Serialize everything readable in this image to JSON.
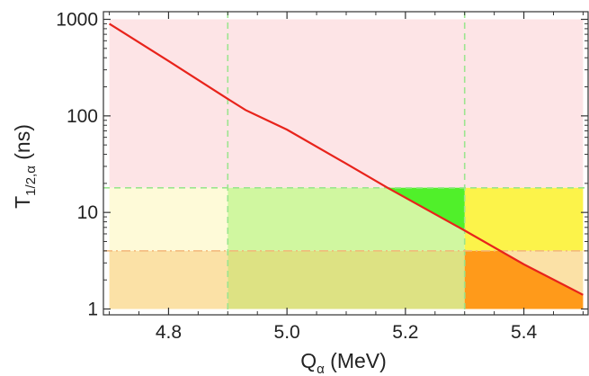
{
  "chart_data": {
    "type": "line",
    "title": "",
    "xlabel": {
      "main": "Q",
      "sub": "α",
      "suffix": " (MeV)"
    },
    "ylabel": {
      "main": "T",
      "sub": "1/2,α",
      "suffix": " (ns)"
    },
    "xlim": [
      4.69,
      5.51
    ],
    "ylim": [
      0.87,
      1200
    ],
    "yscale": "log",
    "x_ticks": [
      {
        "value": 4.8,
        "label": "4.8"
      },
      {
        "value": 5.0,
        "label": "5.0"
      },
      {
        "value": 5.2,
        "label": "5.2"
      },
      {
        "value": 5.4,
        "label": "5.4"
      }
    ],
    "y_ticks": [
      {
        "value": 1,
        "label": "1"
      },
      {
        "value": 10,
        "label": "10"
      },
      {
        "value": 100,
        "label": "100"
      },
      {
        "value": 1000,
        "label": "1000"
      }
    ],
    "grid": false,
    "series": [
      {
        "color": "#e8231b",
        "x": [
          4.7,
          4.8,
          4.9,
          4.93,
          5.0,
          5.1,
          5.17,
          5.3,
          5.4,
          5.5
        ],
        "y": [
          900,
          370,
          150,
          115,
          72,
          32,
          18,
          6.5,
          2.9,
          1.4
        ]
      }
    ],
    "regions": [
      {
        "x": [
          4.7,
          5.5
        ],
        "y": [
          18,
          1000
        ],
        "color": "#fde4e6"
      },
      {
        "x": [
          4.7,
          4.9
        ],
        "y": [
          4,
          18
        ],
        "color": "#fefad8"
      },
      {
        "x": [
          4.9,
          5.3
        ],
        "y": [
          4,
          18
        ],
        "color": "#d0f7a0"
      },
      {
        "x": [
          5.3,
          5.5
        ],
        "y": [
          4,
          18
        ],
        "color": "#fcf34a"
      },
      {
        "x": [
          4.7,
          4.9
        ],
        "y": [
          1,
          4
        ],
        "color": "#fbe1a6"
      },
      {
        "x": [
          4.9,
          5.3
        ],
        "y": [
          1,
          4
        ],
        "color": "#dde283"
      },
      {
        "x": [
          5.3,
          5.5
        ],
        "y": [
          1,
          4
        ],
        "color": "#fbe1a6"
      },
      {
        "x": [
          5.3,
          5.5
        ],
        "y": [
          1,
          4
        ],
        "color": "#ff9a1a",
        "above_curve": false
      },
      {
        "x": [
          4.9,
          5.3
        ],
        "y": [
          4,
          18
        ],
        "color": "#50f02a",
        "above_curve": true
      }
    ],
    "reference_lines": [
      {
        "axis": "x",
        "value": 4.9,
        "color": "#9be58f",
        "style": "dashed"
      },
      {
        "axis": "x",
        "value": 5.3,
        "color": "#9be58f",
        "style": "dashed"
      },
      {
        "axis": "y",
        "value": 18,
        "color": "#9be58f",
        "style": "dashed"
      },
      {
        "axis": "y",
        "value": 4,
        "color": "#f2b77a",
        "style": "dash-dot"
      }
    ]
  }
}
